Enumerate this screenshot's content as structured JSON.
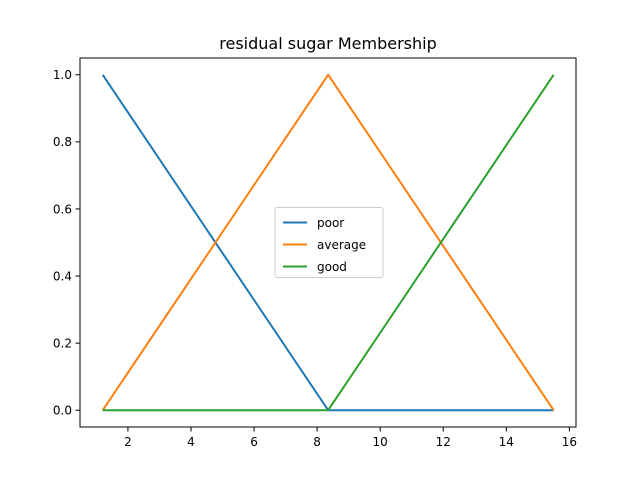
{
  "chart_data": {
    "type": "line",
    "title": "residual sugar Membership",
    "xlabel": "",
    "ylabel": "",
    "xlim": [
      0.48,
      16.21
    ],
    "ylim": [
      -0.05,
      1.05
    ],
    "x_ticks": [
      2,
      4,
      6,
      8,
      10,
      12,
      14,
      16
    ],
    "y_ticks": [
      0.0,
      0.2,
      0.4,
      0.6,
      0.8,
      1.0
    ],
    "x_tick_labels": [
      "2",
      "4",
      "6",
      "8",
      "10",
      "12",
      "14",
      "16"
    ],
    "y_tick_labels": [
      "0.0",
      "0.2",
      "0.4",
      "0.6",
      "0.8",
      "1.0"
    ],
    "grid": false,
    "legend_position": "center",
    "series": [
      {
        "name": "poor",
        "color": "#1f77b4",
        "x": [
          1.2,
          8.35,
          15.5
        ],
        "y": [
          1.0,
          0.0,
          0.0
        ]
      },
      {
        "name": "average",
        "color": "#ff7f0e",
        "x": [
          1.2,
          8.35,
          15.5
        ],
        "y": [
          0.0,
          1.0,
          0.0
        ]
      },
      {
        "name": "good",
        "color": "#2ca02c",
        "x": [
          1.2,
          8.35,
          15.5
        ],
        "y": [
          0.0,
          0.0,
          1.0
        ]
      }
    ]
  }
}
